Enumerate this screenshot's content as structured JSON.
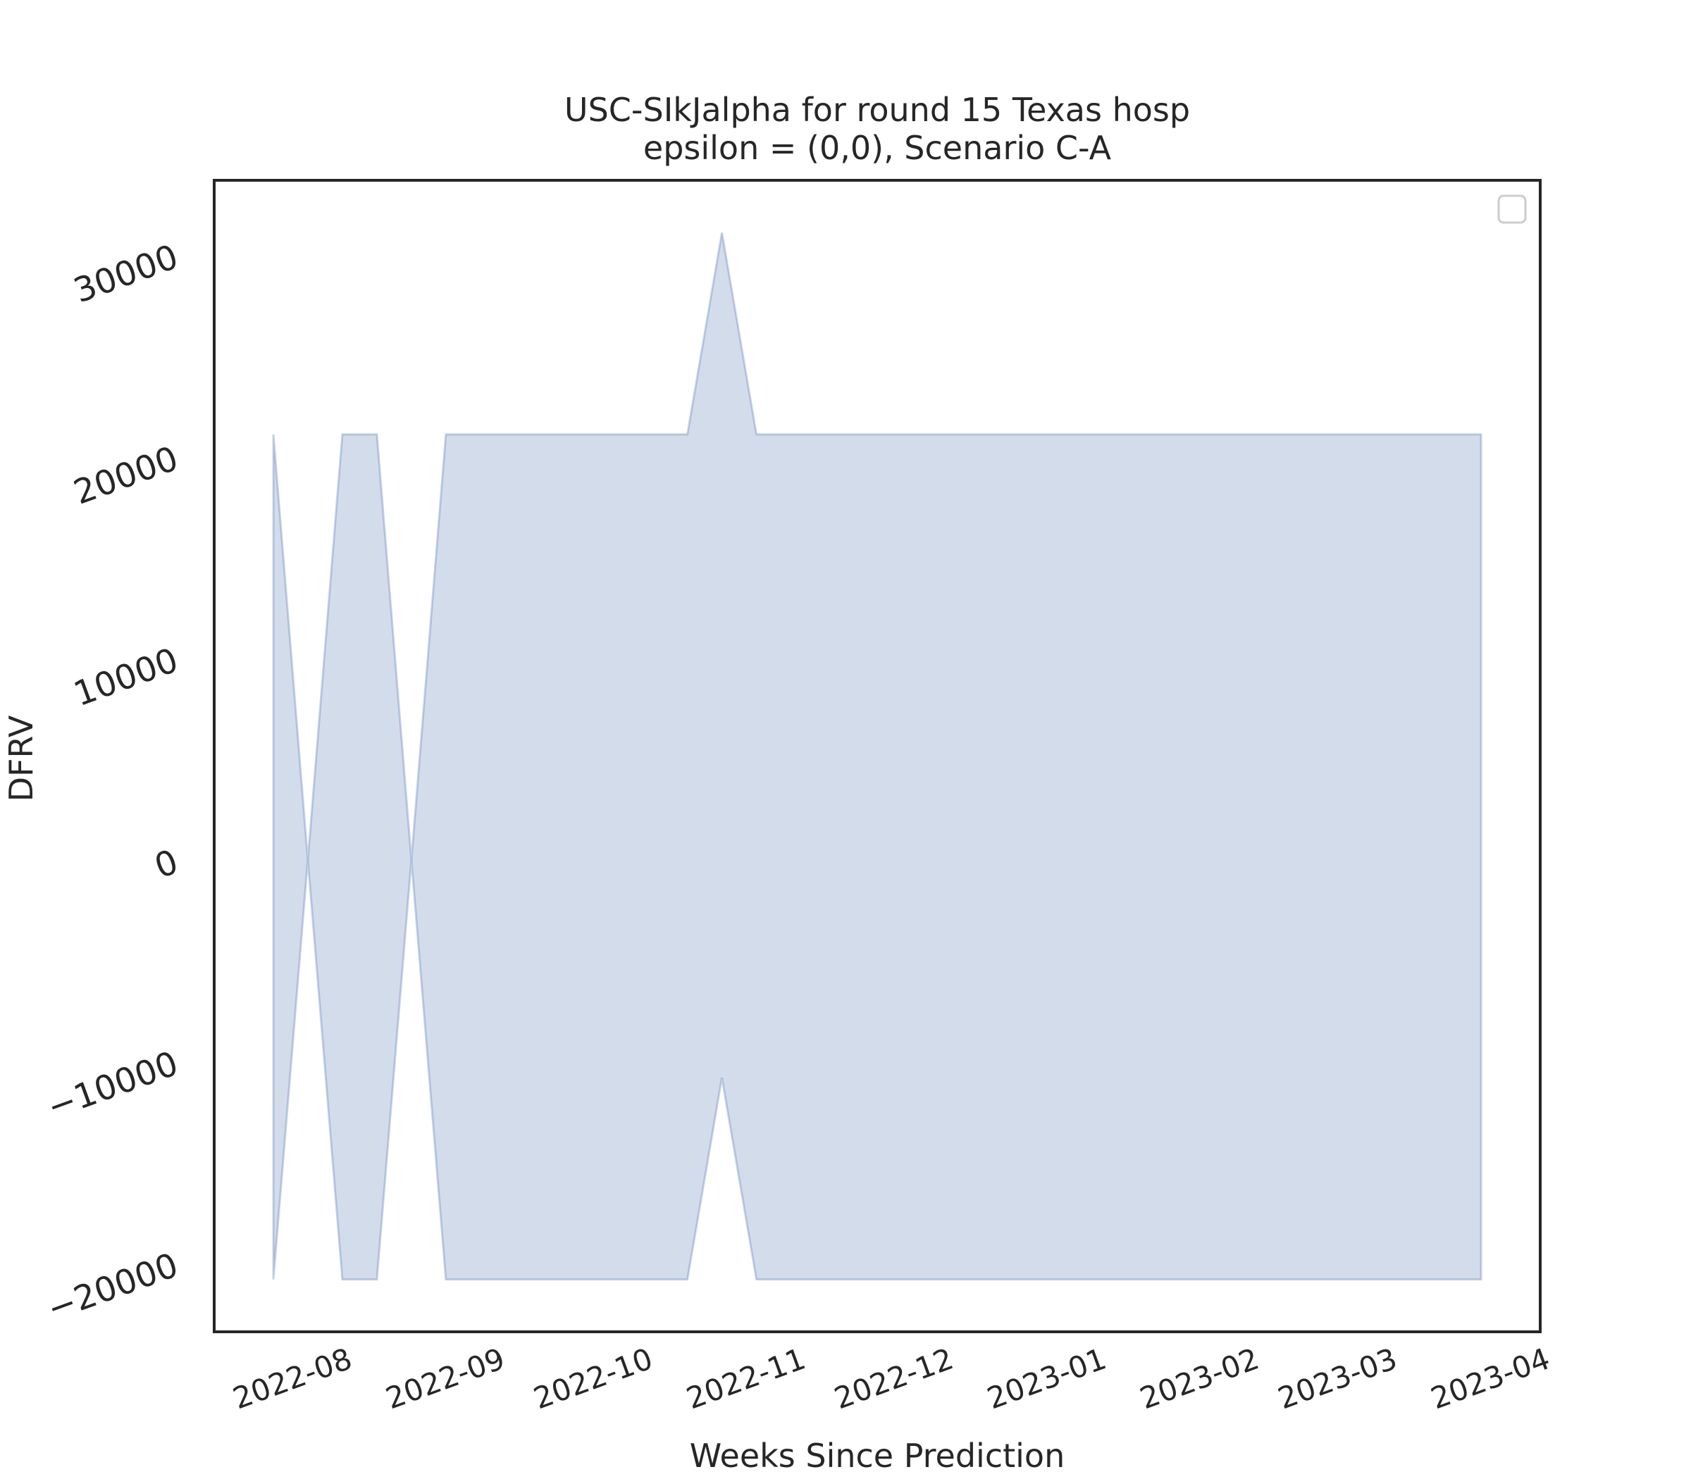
{
  "chart_data": {
    "type": "area_band",
    "title": [
      "USC-SIkJalpha for round 15 Texas hosp",
      "epsilon = (0,0), Scenario C-A"
    ],
    "xlabel": "Weeks Since Prediction",
    "ylabel": "DFRV",
    "color": "#4c72b0",
    "x": [
      "2022-07-26",
      "2022-08-02",
      "2022-08-09",
      "2022-08-16",
      "2022-08-23",
      "2022-08-30",
      "2022-09-06",
      "2022-09-13",
      "2022-09-20",
      "2022-09-27",
      "2022-10-04",
      "2022-10-11",
      "2022-10-18",
      "2022-10-25",
      "2022-11-01",
      "2022-11-08",
      "2022-11-15",
      "2022-11-22",
      "2022-11-29",
      "2022-12-06",
      "2022-12-13",
      "2022-12-20",
      "2022-12-27",
      "2023-01-03",
      "2023-01-10",
      "2023-01-17",
      "2023-01-24",
      "2023-01-31",
      "2023-02-07",
      "2023-02-14",
      "2023-02-21",
      "2023-02-28",
      "2023-03-07",
      "2023-03-14",
      "2023-03-21",
      "2023-03-28"
    ],
    "upper": [
      21100,
      0,
      21100,
      21100,
      0,
      21100,
      21100,
      21100,
      21100,
      21100,
      21100,
      21100,
      21100,
      31100,
      21100,
      21100,
      21100,
      21100,
      21100,
      21100,
      21100,
      21100,
      21100,
      21100,
      21100,
      21100,
      21100,
      21100,
      21100,
      21100,
      21100,
      21100,
      21100,
      21100,
      21100,
      21100
    ],
    "lower": [
      -20800,
      0,
      -20800,
      -20800,
      0,
      -20800,
      -20800,
      -20800,
      -20800,
      -20800,
      -20800,
      -20800,
      -20800,
      -10800,
      -20800,
      -20800,
      -20800,
      -20800,
      -20800,
      -20800,
      -20800,
      -20800,
      -20800,
      -20800,
      -20800,
      -20800,
      -20800,
      -20800,
      -20800,
      -20800,
      -20800,
      -20800,
      -20800,
      -20800,
      -20800,
      -20800
    ],
    "xlim": [
      "2022-07-14",
      "2023-04-09"
    ],
    "xticks": [
      {
        "value": "2022-08-01",
        "label": "2022-08"
      },
      {
        "value": "2022-09-01",
        "label": "2022-09"
      },
      {
        "value": "2022-10-01",
        "label": "2022-10"
      },
      {
        "value": "2022-11-01",
        "label": "2022-11"
      },
      {
        "value": "2022-12-01",
        "label": "2022-12"
      },
      {
        "value": "2023-01-01",
        "label": "2023-01"
      },
      {
        "value": "2023-02-01",
        "label": "2023-02"
      },
      {
        "value": "2023-03-01",
        "label": "2023-03"
      },
      {
        "value": "2023-04-01",
        "label": "2023-04"
      }
    ],
    "ylim": [
      -23400,
      33700
    ],
    "yticks": [
      {
        "value": -20000,
        "label": "−20000"
      },
      {
        "value": -10000,
        "label": "−10000"
      },
      0,
      10000,
      20000,
      30000
    ]
  }
}
